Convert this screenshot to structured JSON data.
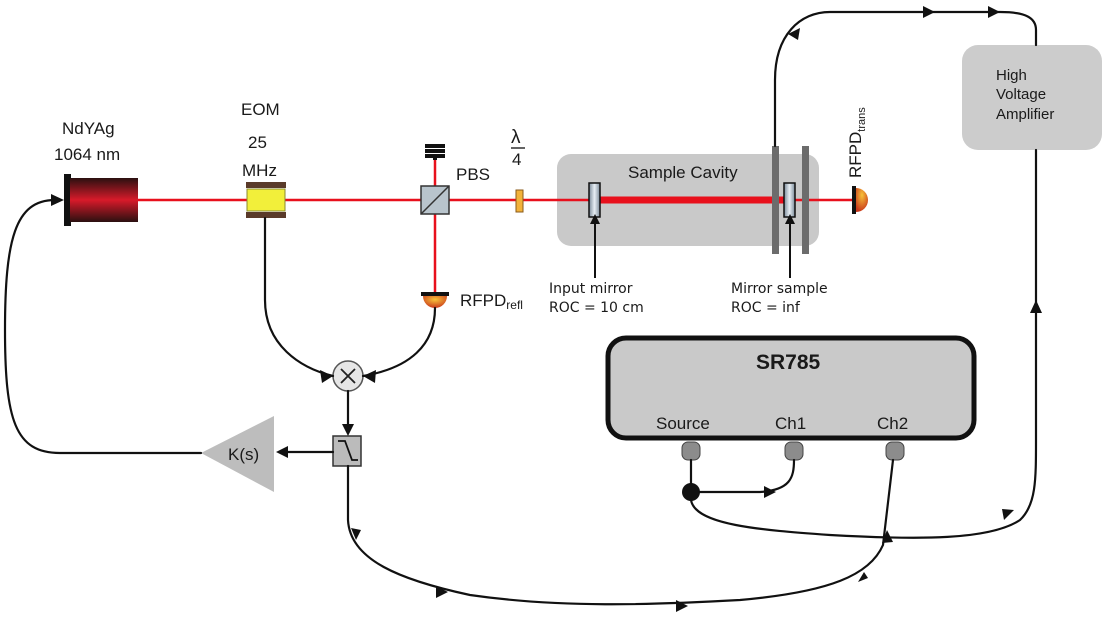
{
  "laser": {
    "name": "NdYAg",
    "wavelength": "1064 nm"
  },
  "eom": {
    "name": "EOM",
    "frequency_value": "25",
    "frequency_unit": "MHz"
  },
  "pbs": {
    "label": "PBS"
  },
  "waveplate": {
    "numerator": "λ",
    "denominator": "4"
  },
  "cavity": {
    "label": "Sample Cavity"
  },
  "input_mirror": {
    "line1": "Input mirror",
    "line2": "ROC = 10 cm"
  },
  "mirror_sample": {
    "line1": "Mirror sample",
    "line2": "ROC = inf"
  },
  "rfpd_refl": {
    "main": "RFPD",
    "sub": "refl"
  },
  "rfpd_trans": {
    "main": "RFPD",
    "sub": "trans"
  },
  "hv_amp": {
    "line1": "High",
    "line2": "Voltage",
    "line3": "Amplifier"
  },
  "controller": {
    "label": "K(s)"
  },
  "sr785": {
    "title": "SR785",
    "port_source": "Source",
    "port_ch1": "Ch1",
    "port_ch2": "Ch2"
  },
  "colors": {
    "laser_beam": "#e8101c",
    "gray_box": "#c9c9c9",
    "amp_box": "#cccccc",
    "eom_crystal": "#f2ef3a",
    "photodiode": "#e0551a"
  }
}
